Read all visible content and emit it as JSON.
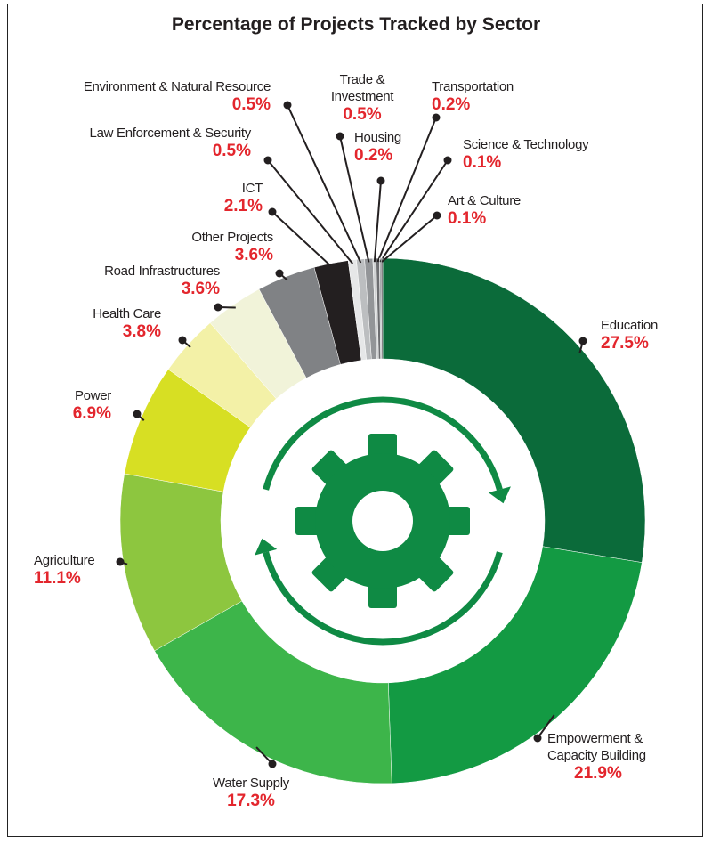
{
  "chart_data": {
    "type": "donut",
    "title": "Percentage of Projects Tracked by Sector",
    "categories": [
      "Education",
      "Empowerment & Capacity Building",
      "Water Supply",
      "Agriculture",
      "Power",
      "Health Care",
      "Road Infrastructures",
      "Other Projects",
      "ICT",
      "Law Enforcement & Security",
      "Environment & Natural Resource",
      "Trade & Investment",
      "Housing",
      "Transportation",
      "Science & Technology",
      "Art & Culture"
    ],
    "values": [
      27.5,
      21.9,
      17.3,
      11.1,
      6.9,
      3.8,
      3.6,
      3.6,
      2.1,
      0.5,
      0.5,
      0.5,
      0.2,
      0.2,
      0.1,
      0.1
    ],
    "value_labels": [
      "27.5%",
      "21.9%",
      "17.3%",
      "11.1%",
      "6.9%",
      "3.8%",
      "3.6%",
      "3.6%",
      "2.1%",
      "0.5%",
      "0.5%",
      "0.5%",
      "0.2%",
      "0.2%",
      "0.1%",
      "0.1%"
    ],
    "colors": [
      "#0b6b3a",
      "#139a43",
      "#3db54a",
      "#8dc63f",
      "#d7df23",
      "#f3f1a7",
      "#f1f3d9",
      "#808285",
      "#231f20",
      "#e6e7e8",
      "#bcbec0",
      "#939598",
      "#d1d3d4",
      "#6d6e71",
      "#a7a9ac",
      "#58595b"
    ]
  }
}
